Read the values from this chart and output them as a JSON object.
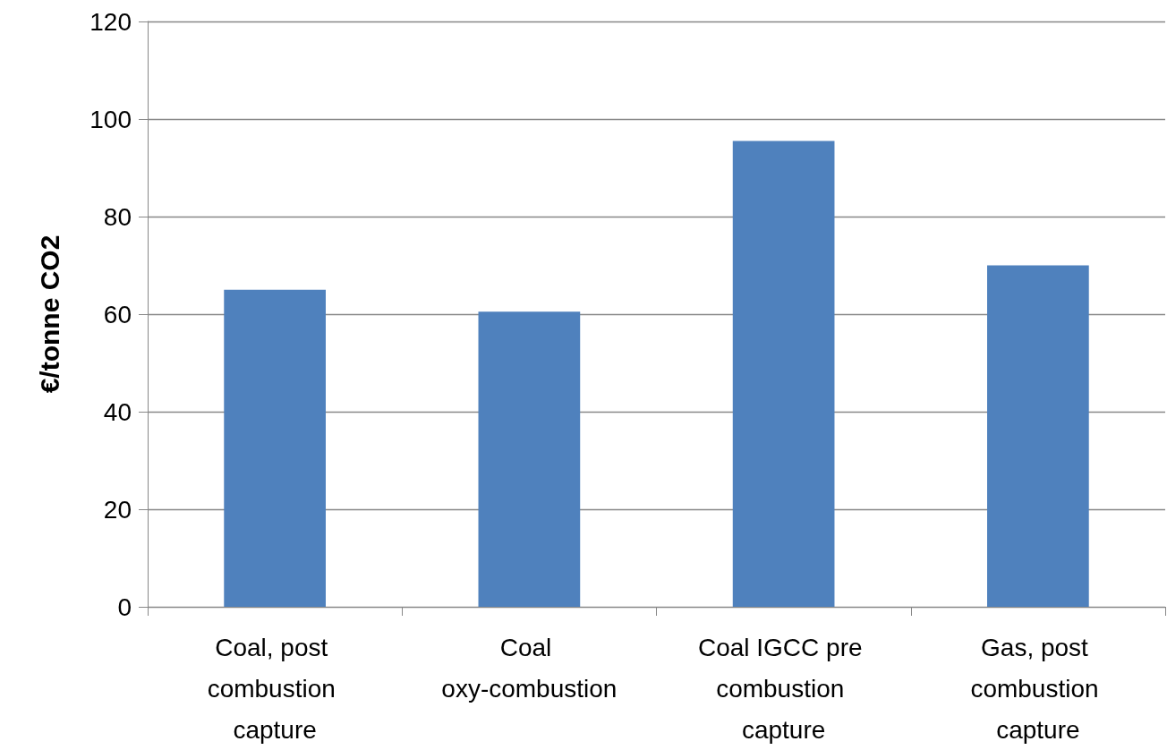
{
  "chart_data": {
    "type": "bar",
    "ylabel": "€/tonne CO2",
    "categories": [
      "Coal, post combustion capture",
      "Coal oxy-combustion",
      "Coal IGCC pre combustion capture",
      "Gas, post combustion capture"
    ],
    "values": [
      65,
      60.5,
      95.5,
      70
    ],
    "color": "#4f81bd",
    "ylim": [
      0,
      120
    ],
    "yticks": [
      0,
      20,
      40,
      60,
      80,
      100,
      120
    ],
    "grid": "y"
  }
}
